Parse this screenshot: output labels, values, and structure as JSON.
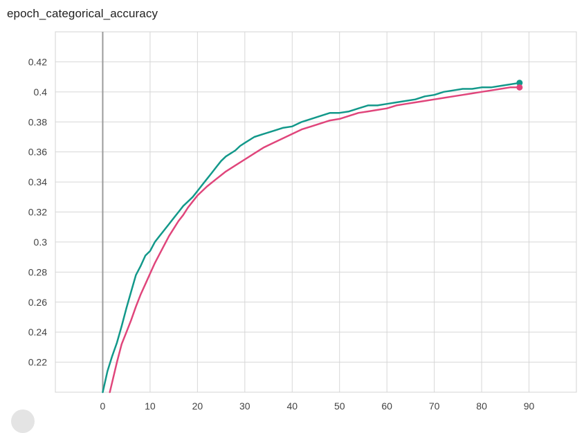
{
  "chart_data": {
    "type": "line",
    "title": "epoch_categorical_accuracy",
    "xlabel": "",
    "ylabel": "",
    "xlim": [
      -10,
      100
    ],
    "ylim": [
      0.2,
      0.44
    ],
    "grid": true,
    "x_ticks": [
      0,
      10,
      20,
      30,
      40,
      50,
      60,
      70,
      80,
      90
    ],
    "x_tick_labels": [
      "0",
      "10",
      "20",
      "30",
      "40",
      "50",
      "60",
      "70",
      "80",
      "90"
    ],
    "y_ticks": [
      0.22,
      0.24,
      0.26,
      0.28,
      0.3,
      0.32,
      0.34,
      0.36,
      0.38,
      0.4,
      0.42
    ],
    "y_tick_labels": [
      "0.22",
      "0.24",
      "0.26",
      "0.28",
      "0.3",
      "0.32",
      "0.34",
      "0.36",
      "0.38",
      "0.4",
      "0.42"
    ],
    "series": [
      {
        "color": "#12988a",
        "x": [
          0,
          1,
          2,
          3,
          4,
          5,
          6,
          7,
          8,
          9,
          10,
          11,
          12,
          13,
          14,
          15,
          16,
          17,
          18,
          19,
          20,
          21,
          22,
          23,
          24,
          25,
          26,
          27,
          28,
          29,
          30,
          32,
          34,
          36,
          38,
          40,
          42,
          44,
          46,
          48,
          50,
          52,
          54,
          56,
          58,
          60,
          62,
          64,
          66,
          68,
          70,
          72,
          74,
          76,
          78,
          80,
          82,
          84,
          86,
          88
        ],
        "y": [
          0.2,
          0.214,
          0.224,
          0.233,
          0.244,
          0.256,
          0.267,
          0.278,
          0.284,
          0.291,
          0.294,
          0.3,
          0.304,
          0.308,
          0.312,
          0.316,
          0.32,
          0.324,
          0.327,
          0.33,
          0.334,
          0.338,
          0.342,
          0.346,
          0.35,
          0.354,
          0.357,
          0.359,
          0.361,
          0.364,
          0.366,
          0.37,
          0.372,
          0.374,
          0.376,
          0.377,
          0.38,
          0.382,
          0.384,
          0.386,
          0.386,
          0.387,
          0.389,
          0.391,
          0.391,
          0.392,
          0.393,
          0.394,
          0.395,
          0.397,
          0.398,
          0.4,
          0.401,
          0.402,
          0.402,
          0.403,
          0.403,
          0.404,
          0.405,
          0.406
        ]
      },
      {
        "color": "#e0457b",
        "x": [
          1.5,
          3,
          4,
          5,
          6,
          7,
          8,
          9,
          10,
          11,
          12,
          13,
          14,
          15,
          16,
          17,
          18,
          19,
          20,
          22,
          24,
          26,
          28,
          30,
          32,
          34,
          36,
          38,
          40,
          42,
          44,
          46,
          48,
          50,
          52,
          54,
          56,
          58,
          60,
          62,
          64,
          66,
          68,
          70,
          72,
          74,
          76,
          78,
          80,
          82,
          84,
          86,
          88
        ],
        "y": [
          0.2,
          0.22,
          0.232,
          0.24,
          0.248,
          0.257,
          0.265,
          0.272,
          0.279,
          0.286,
          0.292,
          0.298,
          0.304,
          0.309,
          0.314,
          0.318,
          0.323,
          0.327,
          0.331,
          0.337,
          0.342,
          0.347,
          0.351,
          0.355,
          0.359,
          0.363,
          0.366,
          0.369,
          0.372,
          0.375,
          0.377,
          0.379,
          0.381,
          0.382,
          0.384,
          0.386,
          0.387,
          0.388,
          0.389,
          0.391,
          0.392,
          0.393,
          0.394,
          0.395,
          0.396,
          0.397,
          0.398,
          0.399,
          0.4,
          0.401,
          0.402,
          0.403,
          0.403
        ]
      }
    ]
  }
}
